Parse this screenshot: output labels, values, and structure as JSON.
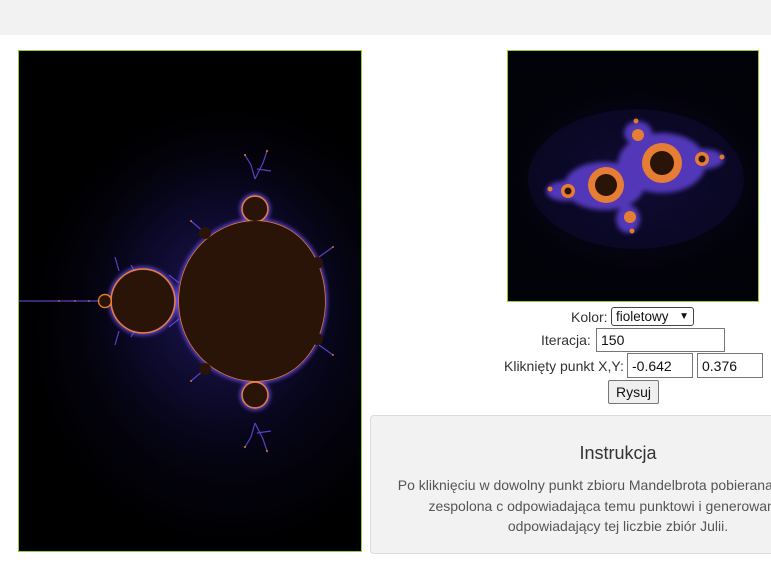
{
  "colors": {
    "background": "#0b0a1f",
    "set_interior": "#2a1408",
    "edge_purple": "#5a3cc8",
    "edge_orange": "#ff8a1e",
    "canvas_border": "#9acd32"
  },
  "controls": {
    "color_label": "Kolor:",
    "color_selected": "fioletowy",
    "iteration_label": "Iteracja:",
    "iteration_value": "150",
    "point_label": "Kliknięty punkt X,Y:",
    "point_x": "-0.642",
    "point_y": "0.376",
    "draw_button": "Rysuj"
  },
  "instructions": {
    "title": "Instrukcja",
    "line1": "Po kliknięciu w dowolny punkt zbioru Mandelbrota pobierana jest liczba",
    "line2": "zespolona c odpowiadająca temu punktowi i generowany jest",
    "line3": "odpowiadający tej liczbie zbiór Julii."
  }
}
